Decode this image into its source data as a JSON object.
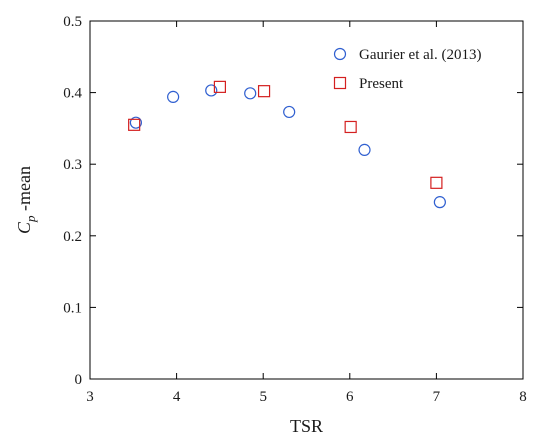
{
  "chart_data": {
    "type": "scatter",
    "xlabel": "TSR",
    "ylabel": {
      "base": "C",
      "subscript": "p",
      "suffix": " -mean"
    },
    "xlim": [
      3,
      8
    ],
    "ylim": [
      0,
      0.5
    ],
    "xticks": [
      3,
      4,
      5,
      6,
      7,
      8
    ],
    "yticks": [
      0,
      0.1,
      0.2,
      0.3,
      0.4,
      0.5
    ],
    "xtick_labels": [
      "3",
      "4",
      "5",
      "6",
      "7",
      "8"
    ],
    "ytick_labels": [
      "0",
      "0.1",
      "0.2",
      "0.3",
      "0.4",
      "0.5"
    ],
    "grid": false,
    "legend_position": "top-right",
    "series": [
      {
        "name": "Gaurier et al. (2013)",
        "marker": "circle",
        "color": "#2f5fd0",
        "points": [
          {
            "x": 3.53,
            "y": 0.358
          },
          {
            "x": 3.96,
            "y": 0.394
          },
          {
            "x": 4.4,
            "y": 0.403
          },
          {
            "x": 4.85,
            "y": 0.399
          },
          {
            "x": 5.3,
            "y": 0.373
          },
          {
            "x": 6.17,
            "y": 0.32
          },
          {
            "x": 7.04,
            "y": 0.247
          }
        ]
      },
      {
        "name": "Present",
        "marker": "square",
        "color": "#d42020",
        "points": [
          {
            "x": 3.51,
            "y": 0.355
          },
          {
            "x": 4.5,
            "y": 0.408
          },
          {
            "x": 5.01,
            "y": 0.402
          },
          {
            "x": 6.01,
            "y": 0.352
          },
          {
            "x": 7.0,
            "y": 0.274
          }
        ]
      }
    ]
  }
}
